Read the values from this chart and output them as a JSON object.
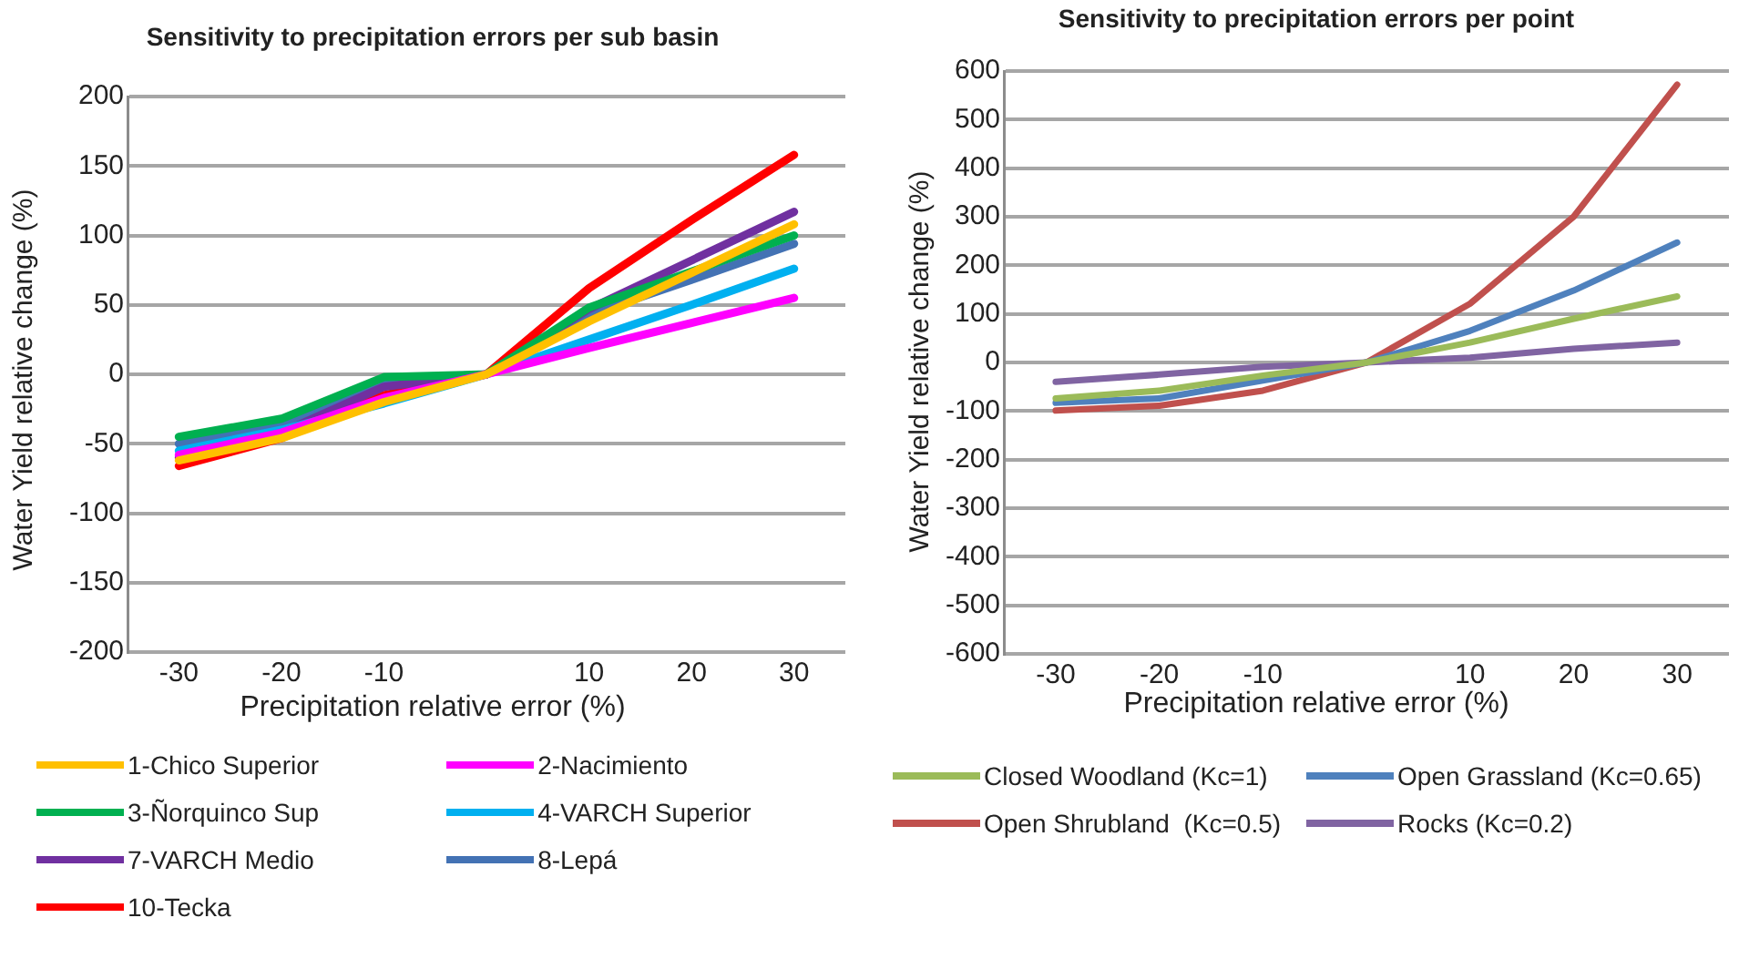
{
  "chart_data": [
    {
      "type": "line",
      "title": "Sensitivity to precipitation errors per sub basin",
      "xlabel": "Precipitation relative error (%)",
      "ylabel": "Water Yield relative change (%)",
      "categories": [
        "-30",
        "-20",
        "-10",
        null,
        "10",
        "20",
        "30"
      ],
      "ylim": [
        -200,
        200
      ],
      "yticks": [
        -200,
        -150,
        -100,
        -50,
        0,
        50,
        100,
        150,
        200
      ],
      "grid": "y",
      "legend": "bottom",
      "marker": "none",
      "series": [
        {
          "name": "1-Chico Superior",
          "color": "#ffc000",
          "values": [
            -62,
            -46,
            -20,
            0,
            38,
            73,
            108
          ]
        },
        {
          "name": "2-Nacimiento",
          "color": "#ff00ff",
          "values": [
            -58,
            -42,
            -17,
            0,
            19,
            37,
            55
          ]
        },
        {
          "name": "3-Ñorquinco Sup",
          "color": "#00b050",
          "values": [
            -45,
            -32,
            -2,
            0,
            48,
            74,
            100
          ]
        },
        {
          "name": "4-VARCH Superior",
          "color": "#00b0f0",
          "values": [
            -55,
            -40,
            -21,
            0,
            25,
            50,
            76
          ]
        },
        {
          "name": "7-VARCH Medio",
          "color": "#7030a0",
          "values": [
            -60,
            -42,
            -9,
            0,
            47,
            82,
            117
          ]
        },
        {
          "name": "8-Lepá",
          "color": "#4372b4",
          "values": [
            -50,
            -36,
            -6,
            0,
            43,
            68,
            94
          ]
        },
        {
          "name": "10-Tecka",
          "color": "#ff0000",
          "values": [
            -66,
            -46,
            -15,
            0,
            62,
            111,
            158
          ]
        }
      ]
    },
    {
      "type": "line",
      "title": "Sensitivity to precipitation errors per point",
      "xlabel": "Precipitation relative error (%)",
      "ylabel": "Water Yield relative change (%)",
      "categories": [
        "-30",
        "-20",
        "-10",
        null,
        "10",
        "20",
        "30"
      ],
      "ylim": [
        -600,
        600
      ],
      "yticks": [
        -600,
        -500,
        -400,
        -300,
        -200,
        -100,
        0,
        100,
        200,
        300,
        400,
        500,
        600
      ],
      "grid": "y",
      "legend": "bottom",
      "marker": "none",
      "series": [
        {
          "name": "Closed Woodland (Kc=1)",
          "color": "#9bbb59",
          "values": [
            -74,
            -58,
            -27,
            0,
            41,
            90,
            136
          ]
        },
        {
          "name": "Open Grassland (Kc=0.65)",
          "color": "#4f81bd",
          "values": [
            -83,
            -74,
            -37,
            0,
            65,
            148,
            247
          ]
        },
        {
          "name": "Open Shrubland  (Kc=0.5)",
          "color": "#c0504d",
          "values": [
            -99,
            -89,
            -58,
            0,
            121,
            300,
            572
          ]
        },
        {
          "name": "Rocks (Kc=0.2)",
          "color": "#8064a2",
          "values": [
            -40,
            -25,
            -9,
            0,
            10,
            28,
            41
          ]
        }
      ]
    }
  ]
}
